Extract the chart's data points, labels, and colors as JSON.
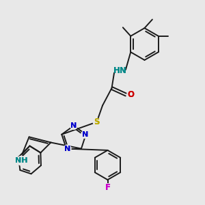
{
  "background_color": "#e8e8e8",
  "bond_color": "#1a1a1a",
  "bond_width": 1.4,
  "atom_colors": {
    "N": "#0000cc",
    "O": "#cc0000",
    "S": "#bbaa00",
    "F": "#cc00cc",
    "NH": "#008888"
  },
  "figsize": [
    3.0,
    3.0
  ],
  "dpi": 100,
  "xlim": [
    0,
    10
  ],
  "ylim": [
    0,
    10
  ]
}
